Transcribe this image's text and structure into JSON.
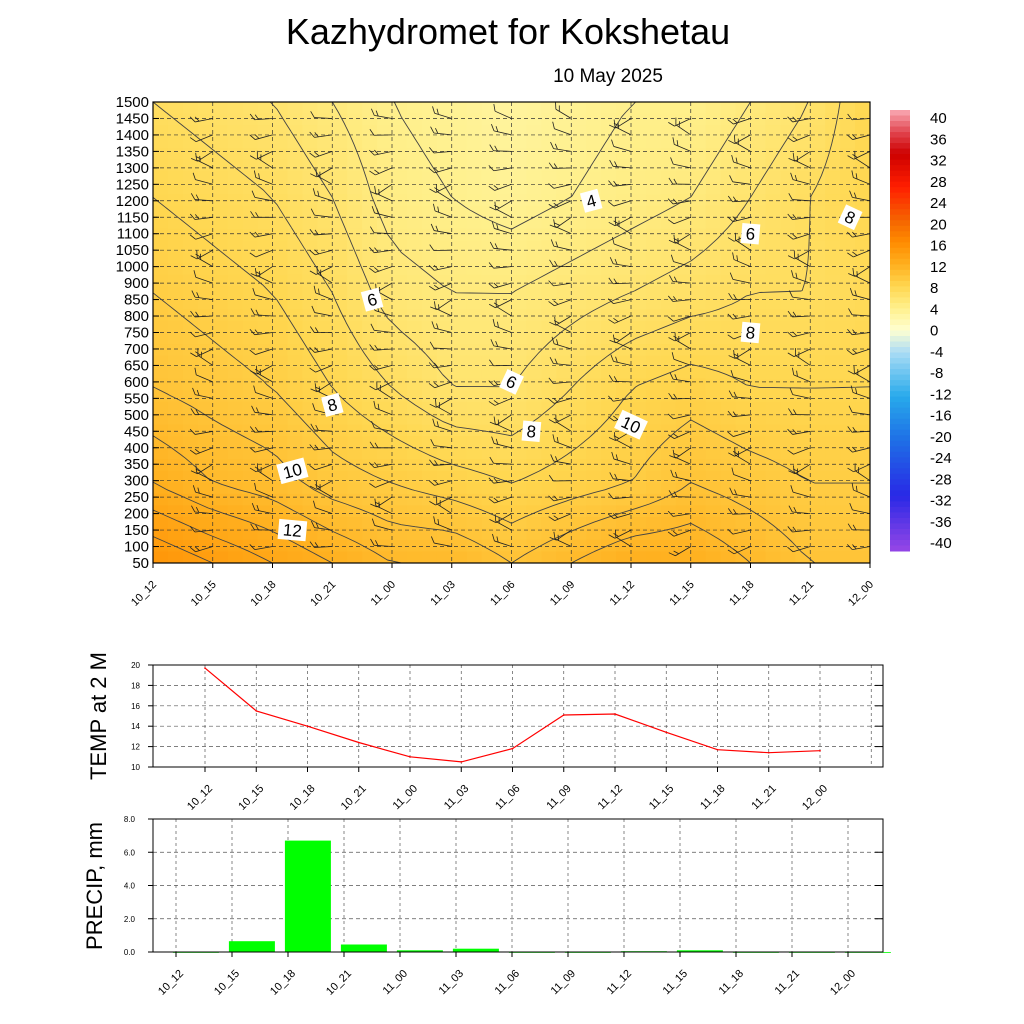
{
  "header": {
    "title": "Kazhydromet  for Kokshetau",
    "subtitle": "10 May 2025"
  },
  "chart_data": [
    {
      "type": "heatmap",
      "description_kind": "time-height cross-section of temperature with wind barbs",
      "x_categories": [
        "10_12",
        "10_15",
        "10_18",
        "10_21",
        "11_00",
        "11_03",
        "11_06",
        "11_09",
        "11_12",
        "11_15",
        "11_18",
        "11_21",
        "12_00"
      ],
      "y_levels": [
        50,
        100,
        150,
        200,
        250,
        300,
        350,
        400,
        450,
        500,
        550,
        600,
        650,
        700,
        750,
        800,
        850,
        900,
        1000,
        1050,
        1100,
        1150,
        1200,
        1250,
        1300,
        1350,
        1400,
        1450,
        1500
      ],
      "colorbar": {
        "ticks": [
          40,
          36,
          32,
          28,
          24,
          20,
          16,
          12,
          8,
          4,
          0,
          -4,
          -8,
          -12,
          -16,
          -20,
          -24,
          -28,
          -32,
          -36,
          -40
        ],
        "range": [
          -40,
          40
        ]
      },
      "temperature_grid_levels": [
        50,
        300,
        600,
        900,
        1200,
        1500
      ],
      "temperature_grid": [
        [
          15,
          14,
          13,
          12,
          11,
          11,
          10,
          11,
          12,
          12,
          11,
          10,
          10
        ],
        [
          12,
          11,
          10.5,
          9.5,
          9,
          8.5,
          8,
          8.5,
          9,
          10,
          9.5,
          9,
          9
        ],
        [
          10,
          9.5,
          9,
          8,
          7,
          6,
          6,
          7,
          8,
          8.5,
          8,
          8,
          8
        ],
        [
          9,
          8.5,
          8,
          7,
          5.5,
          5,
          5,
          5.5,
          6,
          6.5,
          7,
          7,
          7.5
        ],
        [
          8,
          7.5,
          7,
          6,
          4.5,
          4,
          3.5,
          4,
          4.5,
          5,
          6,
          7,
          8
        ],
        [
          7,
          6.5,
          6,
          5,
          4,
          3.5,
          3,
          3.5,
          4,
          4,
          5,
          6,
          8
        ]
      ],
      "contour_labels": [
        {
          "text": "4",
          "x": "11_10",
          "y": 1200
        },
        {
          "text": "6",
          "x": "11_18",
          "y": 1100
        },
        {
          "text": "8",
          "x": "11_23",
          "y": 1150
        },
        {
          "text": "6",
          "x": "10_23",
          "y": 850
        },
        {
          "text": "8",
          "x": "11_18",
          "y": 750
        },
        {
          "text": "6",
          "x": "11_06",
          "y": 600
        },
        {
          "text": "8",
          "x": "10_21",
          "y": 530
        },
        {
          "text": "8",
          "x": "11_07",
          "y": 450
        },
        {
          "text": "10",
          "x": "11_12",
          "y": 470
        },
        {
          "text": "10",
          "x": "10_19",
          "y": 330
        },
        {
          "text": "12",
          "x": "10_19",
          "y": 150
        }
      ]
    },
    {
      "type": "line",
      "ylabel": "TEMP at 2 M",
      "categories": [
        "10_12",
        "10_15",
        "10_18",
        "10_21",
        "11_00",
        "11_03",
        "11_06",
        "11_09",
        "11_12",
        "11_15",
        "11_18",
        "11_21",
        "12_00"
      ],
      "values": [
        19.7,
        15.5,
        14.0,
        12.4,
        11.0,
        10.5,
        11.8,
        15.1,
        15.2,
        13.4,
        11.7,
        11.4,
        11.6
      ],
      "ylim": [
        10,
        20
      ],
      "yticks": [
        "10",
        "12",
        "14",
        "16",
        "18",
        "20"
      ],
      "line_color": "#ff0000",
      "grid": true
    },
    {
      "type": "bar",
      "ylabel": "PRECIP, mm",
      "categories": [
        "10_12",
        "10_15",
        "10_18",
        "10_21",
        "11_00",
        "11_03",
        "11_06",
        "11_09",
        "11_12",
        "11_15",
        "11_18",
        "11_21",
        "12_00"
      ],
      "values": [
        0.0,
        0.65,
        6.7,
        0.45,
        0.1,
        0.2,
        0.0,
        0.0,
        0.05,
        0.1,
        0.0,
        0.0,
        0.0
      ],
      "ylim": [
        0,
        8
      ],
      "yticks": [
        "0.0",
        "2.0",
        "4.0",
        "6.0",
        "8.0"
      ],
      "bar_color": "#00ff00",
      "grid": true
    }
  ]
}
